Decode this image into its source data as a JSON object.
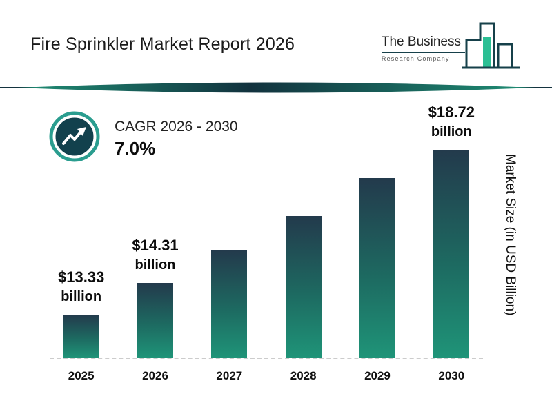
{
  "title": "Fire Sprinkler Market Report 2026",
  "logo": {
    "line1": "The Business",
    "line2": "Research Company"
  },
  "cagr": {
    "label": "CAGR 2026 - 2030",
    "value": "7.0%"
  },
  "y_axis_label": "Market Size (in USD Billion)",
  "colors": {
    "bar_top": "#233a4c",
    "bar_bottom": "#1f9478",
    "accent_teal": "#2a9d8f",
    "dark_teal": "#12414d",
    "divider": "#14333f"
  },
  "chart_data": {
    "type": "bar",
    "title": "Fire Sprinkler Market Report 2026",
    "xlabel": "",
    "ylabel": "Market Size (in USD Billion)",
    "categories": [
      "2025",
      "2026",
      "2027",
      "2028",
      "2029",
      "2030"
    ],
    "values": [
      13.33,
      14.31,
      15.31,
      16.38,
      17.53,
      18.72
    ],
    "value_labels": [
      {
        "line1": "$13.33",
        "line2": "billion"
      },
      {
        "line1": "$14.31",
        "line2": "billion"
      },
      null,
      null,
      null,
      {
        "line1": "$18.72",
        "line2": "billion"
      }
    ],
    "annotations": [
      "CAGR 2026 - 2030",
      "7.0%"
    ],
    "ylim": [
      12,
      19
    ],
    "grid": false,
    "legend": "none"
  }
}
